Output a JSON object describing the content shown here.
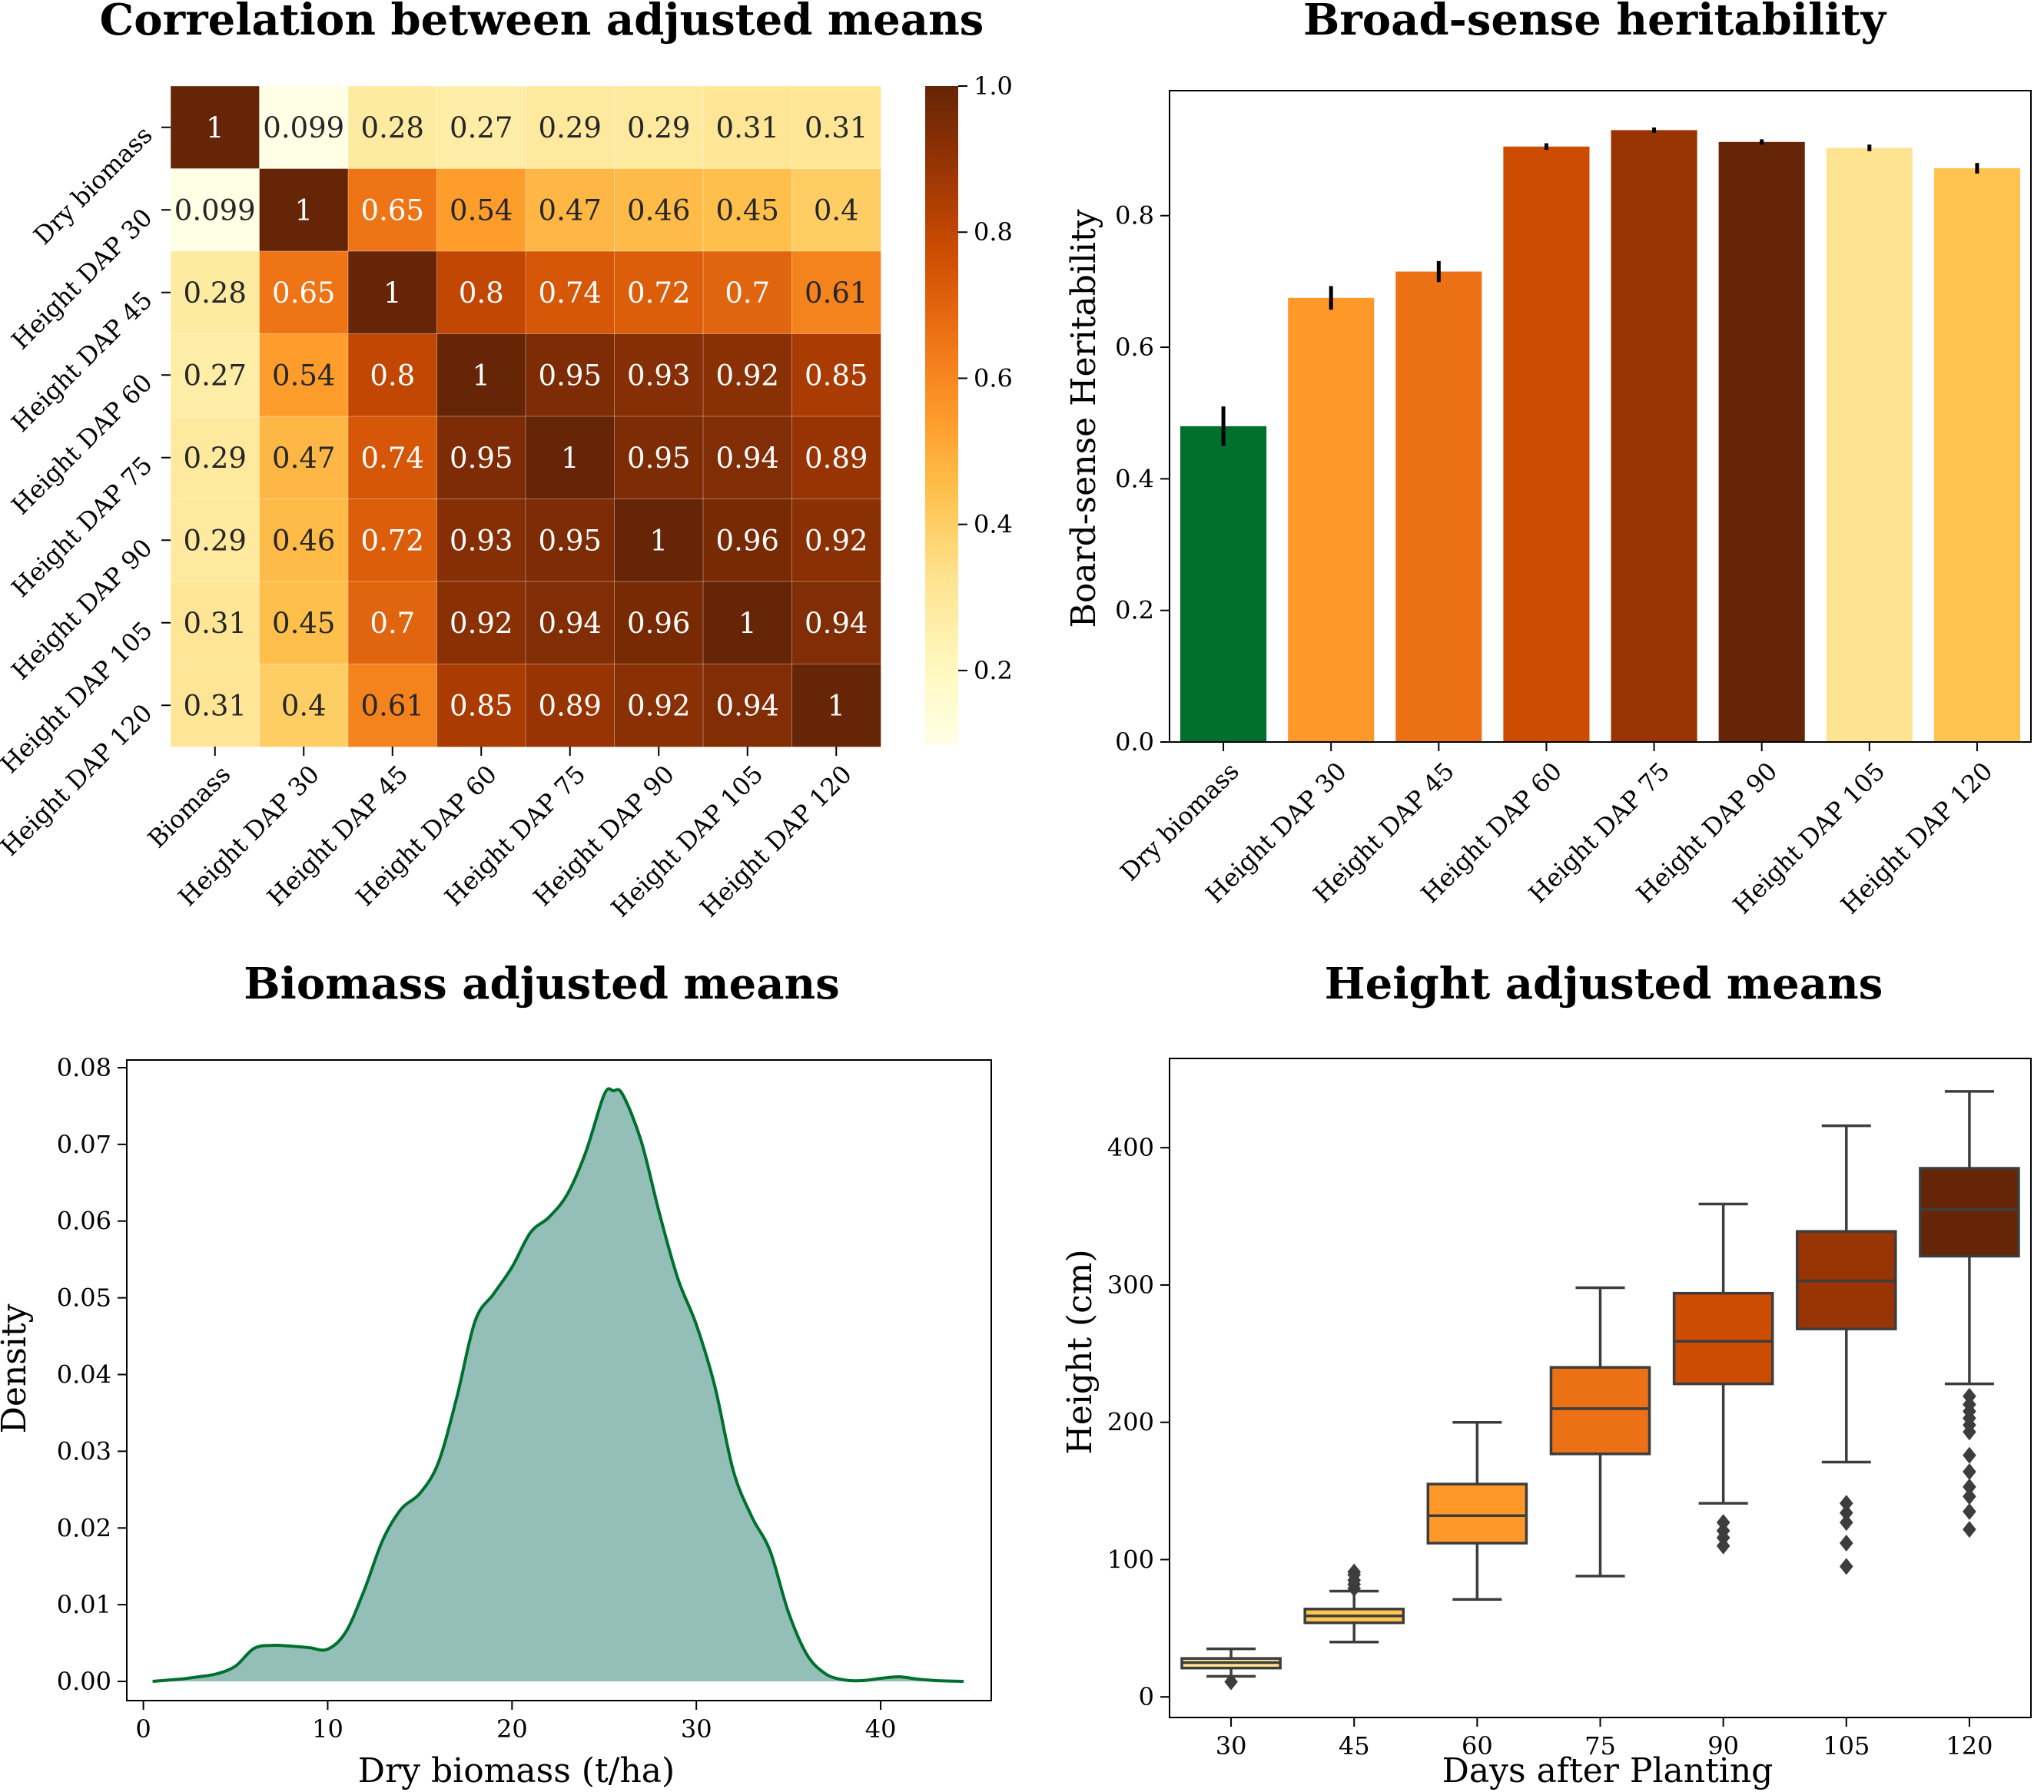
{
  "chart_data": [
    {
      "type": "heatmap",
      "title": "Correlation between adjusted means",
      "row_labels": [
        "Dry biomass",
        "Height DAP 30",
        "Height DAP 45",
        "Height DAP 60",
        "Height DAP 75",
        "Height DAP 90",
        "Height DAP 105",
        "Height DAP 120"
      ],
      "col_labels": [
        "Biomass",
        "Height DAP 30",
        "Height DAP 45",
        "Height DAP 60",
        "Height DAP 75",
        "Height DAP 90",
        "Height DAP 105",
        "Height DAP 120"
      ],
      "values": [
        [
          1,
          0.099,
          0.28,
          0.27,
          0.29,
          0.29,
          0.31,
          0.31
        ],
        [
          0.099,
          1,
          0.65,
          0.54,
          0.47,
          0.46,
          0.45,
          0.4
        ],
        [
          0.28,
          0.65,
          1,
          0.8,
          0.74,
          0.72,
          0.7,
          0.61
        ],
        [
          0.27,
          0.54,
          0.8,
          1,
          0.95,
          0.93,
          0.92,
          0.85
        ],
        [
          0.29,
          0.47,
          0.74,
          0.95,
          1,
          0.95,
          0.94,
          0.89
        ],
        [
          0.29,
          0.46,
          0.72,
          0.93,
          0.95,
          1,
          0.96,
          0.92
        ],
        [
          0.31,
          0.45,
          0.7,
          0.92,
          0.94,
          0.96,
          1,
          0.94
        ],
        [
          0.31,
          0.4,
          0.61,
          0.85,
          0.89,
          0.92,
          0.94,
          1
        ]
      ],
      "cell_text": [
        [
          "1",
          "0.099",
          "0.28",
          "0.27",
          "0.29",
          "0.29",
          "0.31",
          "0.31"
        ],
        [
          "0.099",
          "1",
          "0.65",
          "0.54",
          "0.47",
          "0.46",
          "0.45",
          "0.4"
        ],
        [
          "0.28",
          "0.65",
          "1",
          "0.8",
          "0.74",
          "0.72",
          "0.7",
          "0.61"
        ],
        [
          "0.27",
          "0.54",
          "0.8",
          "1",
          "0.95",
          "0.93",
          "0.92",
          "0.85"
        ],
        [
          "0.29",
          "0.47",
          "0.74",
          "0.95",
          "1",
          "0.95",
          "0.94",
          "0.89"
        ],
        [
          "0.29",
          "0.46",
          "0.72",
          "0.93",
          "0.95",
          "1",
          "0.96",
          "0.92"
        ],
        [
          "0.31",
          "0.45",
          "0.7",
          "0.92",
          "0.94",
          "0.96",
          "1",
          "0.94"
        ],
        [
          "0.31",
          "0.4",
          "0.61",
          "0.85",
          "0.89",
          "0.92",
          "0.94",
          "1"
        ]
      ],
      "colormap": "YlOrBr",
      "colorbar_range": [
        0.099,
        1.0
      ],
      "colorbar_ticks": [
        "0.2",
        "0.4",
        "0.6",
        "0.8",
        "1.0"
      ]
    },
    {
      "type": "bar",
      "title": "Broad-sense heritability",
      "ylabel": "Board-sense Heritability",
      "categories": [
        "Dry biomass",
        "Height DAP 30",
        "Height DAP 45",
        "Height DAP 60",
        "Height DAP 75",
        "Height DAP 90",
        "Height DAP 105",
        "Height DAP 120"
      ],
      "values": [
        0.48,
        0.675,
        0.715,
        0.905,
        0.93,
        0.912,
        0.903,
        0.872
      ],
      "errors": [
        0.03,
        0.018,
        0.016,
        0.005,
        0.004,
        0.004,
        0.005,
        0.008
      ],
      "colors": [
        "#00702f",
        "#fe9929",
        "#ec7014",
        "#cc4c02",
        "#993404",
        "#662506",
        "#fee391",
        "#fec44f"
      ],
      "ylim": [
        0,
        0.99
      ],
      "yticks": [
        "0.0",
        "0.2",
        "0.4",
        "0.6",
        "0.8"
      ]
    },
    {
      "type": "area",
      "title": "Biomass adjusted means",
      "xlabel": "Dry biomass (t/ha)",
      "ylabel": "Density",
      "x": [
        0.5,
        2,
        3,
        4,
        5,
        6,
        7,
        8,
        9,
        10,
        11,
        12,
        13,
        14,
        15,
        16,
        17,
        18,
        19,
        20,
        21,
        22,
        23,
        24,
        25,
        25.5,
        26,
        27,
        28,
        29,
        30,
        31,
        32,
        33,
        34,
        35,
        36,
        37,
        38,
        39,
        40,
        41,
        42,
        43,
        44.5
      ],
      "values": [
        0.0,
        0.0003,
        0.0006,
        0.001,
        0.002,
        0.0043,
        0.0047,
        0.0046,
        0.0044,
        0.0042,
        0.0065,
        0.012,
        0.0185,
        0.0225,
        0.0245,
        0.0285,
        0.037,
        0.047,
        0.0505,
        0.054,
        0.0585,
        0.0605,
        0.0635,
        0.069,
        0.0765,
        0.077,
        0.0765,
        0.0705,
        0.061,
        0.0525,
        0.0465,
        0.0385,
        0.0275,
        0.0215,
        0.017,
        0.009,
        0.0035,
        0.001,
        0.0002,
        0.0001,
        0.0004,
        0.0006,
        0.0003,
        0.0001,
        0.0
      ],
      "xlim": [
        -0.9,
        46.0
      ],
      "ylim": [
        -0.0025,
        0.081
      ],
      "xticks": [
        "0",
        "10",
        "20",
        "30",
        "40"
      ],
      "yticks": [
        "0.00",
        "0.01",
        "0.02",
        "0.03",
        "0.04",
        "0.05",
        "0.06",
        "0.07",
        "0.08"
      ],
      "fill_color": "#94bfb9",
      "line_color": "#00702f"
    },
    {
      "type": "box",
      "title": "Height adjusted means",
      "xlabel": "Days after Planting",
      "ylabel": "Height (cm)",
      "categories": [
        "30",
        "45",
        "60",
        "75",
        "90",
        "105",
        "120"
      ],
      "boxes": [
        {
          "whislo": 15,
          "q1": 21,
          "med": 25,
          "q3": 28,
          "whishi": 35,
          "color": "#fee391",
          "fliers": [
            11
          ]
        },
        {
          "whislo": 40,
          "q1": 54,
          "med": 59,
          "q3": 64,
          "whishi": 77,
          "color": "#fec44f",
          "fliers": [
            79,
            82,
            85,
            89,
            91
          ]
        },
        {
          "whislo": 71,
          "q1": 112,
          "med": 132,
          "q3": 155,
          "whishi": 200,
          "color": "#fe9929",
          "fliers": []
        },
        {
          "whislo": 88,
          "q1": 177,
          "med": 210,
          "q3": 240,
          "whishi": 298,
          "color": "#ec7014",
          "fliers": []
        },
        {
          "whislo": 141,
          "q1": 228,
          "med": 259,
          "q3": 294,
          "whishi": 359,
          "color": "#cc4c02",
          "fliers": [
            110,
            116,
            121,
            127
          ]
        },
        {
          "whislo": 171,
          "q1": 268,
          "med": 303,
          "q3": 339,
          "whishi": 416,
          "color": "#993404",
          "fliers": [
            95,
            112,
            127,
            134,
            141
          ]
        },
        {
          "whislo": 228,
          "q1": 321,
          "med": 355,
          "q3": 385,
          "whishi": 441,
          "color": "#662506",
          "fliers": [
            122,
            135,
            146,
            153,
            164,
            176,
            193,
            198,
            203,
            208,
            213,
            219
          ]
        }
      ],
      "ylim": [
        -15,
        465
      ],
      "yticks": [
        "0",
        "100",
        "200",
        "300",
        "400"
      ]
    }
  ]
}
